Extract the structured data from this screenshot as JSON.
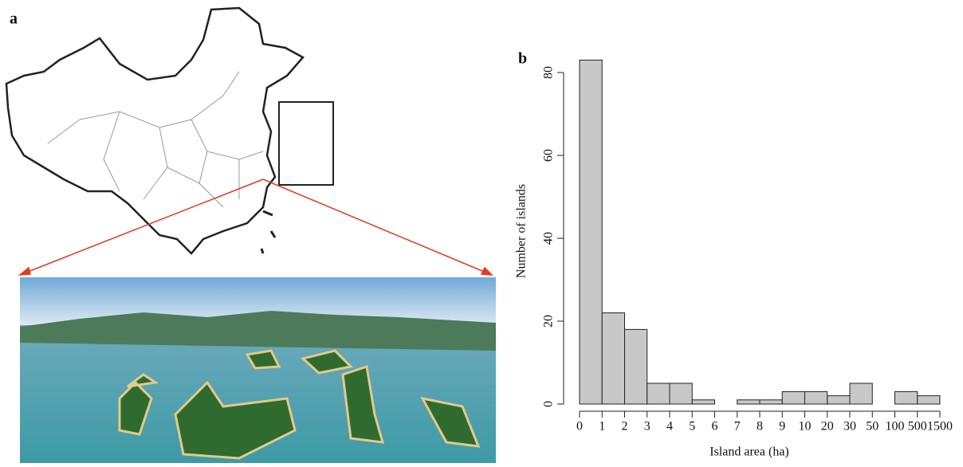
{
  "map_panel": {
    "label": "a"
  },
  "chart_data": {
    "type": "histogram",
    "panel_label": "b",
    "x_label": "Island area (ha)",
    "y_label": "Number of islands",
    "bins": [
      0,
      1,
      2,
      3,
      4,
      5,
      6,
      7,
      8,
      9,
      10,
      20,
      30,
      50,
      100,
      500,
      1500
    ],
    "values": [
      83,
      22,
      18,
      5,
      5,
      1,
      0,
      1,
      1,
      3,
      3,
      2,
      5,
      0,
      3,
      2
    ],
    "color": "#c8c8c8",
    "ylim": [
      0,
      83
    ],
    "yticks": [
      0,
      20,
      40,
      60,
      80
    ]
  }
}
